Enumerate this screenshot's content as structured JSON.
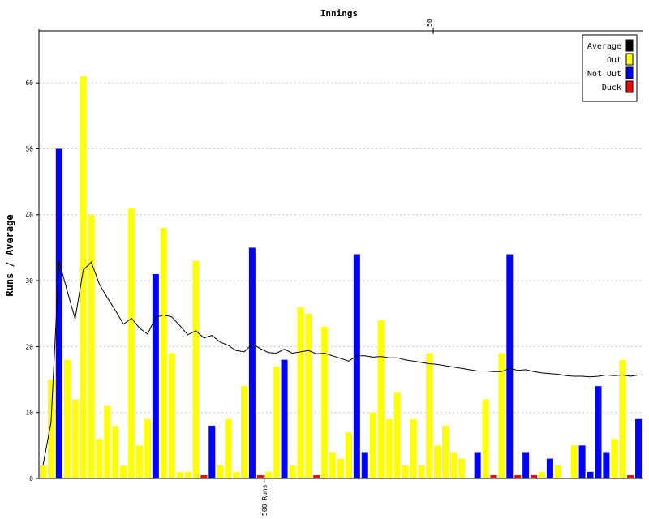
{
  "chart_data": {
    "type": "bar",
    "title": "Innings",
    "ylabel": "Runs / Average",
    "ylim": [
      0,
      68
    ],
    "yticks": [
      0,
      10,
      20,
      30,
      40,
      50,
      60
    ],
    "grid": true,
    "top_axis": {
      "label": "50",
      "innings": 50
    },
    "bottom_axis": {
      "label": "500 Runs",
      "innings": 29
    },
    "legend": {
      "position": "top-right",
      "entries": [
        {
          "name": "Average",
          "color": "#000000"
        },
        {
          "name": "Out",
          "color": "#ffff00"
        },
        {
          "name": "Not Out",
          "color": "#0000ff"
        },
        {
          "name": "Duck",
          "color": "#ff0000"
        }
      ]
    },
    "colors": {
      "Out": "#ffff00",
      "Not Out": "#0000ff",
      "Duck": "#ff0000",
      "Average": "#000000",
      "grid": "#c8c8c8"
    },
    "innings": [
      {
        "runs": 2,
        "status": "Out"
      },
      {
        "runs": 15,
        "status": "Out"
      },
      {
        "runs": 50,
        "status": "Not Out"
      },
      {
        "runs": 18,
        "status": "Out"
      },
      {
        "runs": 12,
        "status": "Out"
      },
      {
        "runs": 61,
        "status": "Out"
      },
      {
        "runs": 40,
        "status": "Out"
      },
      {
        "runs": 6,
        "status": "Out"
      },
      {
        "runs": 11,
        "status": "Out"
      },
      {
        "runs": 8,
        "status": "Out"
      },
      {
        "runs": 2,
        "status": "Out"
      },
      {
        "runs": 41,
        "status": "Out"
      },
      {
        "runs": 5,
        "status": "Out"
      },
      {
        "runs": 9,
        "status": "Out"
      },
      {
        "runs": 31,
        "status": "Not Out"
      },
      {
        "runs": 38,
        "status": "Out"
      },
      {
        "runs": 19,
        "status": "Out"
      },
      {
        "runs": 1,
        "status": "Out"
      },
      {
        "runs": 1,
        "status": "Out"
      },
      {
        "runs": 33,
        "status": "Out"
      },
      {
        "runs": 0,
        "status": "Duck"
      },
      {
        "runs": 8,
        "status": "Not Out"
      },
      {
        "runs": 2,
        "status": "Out"
      },
      {
        "runs": 9,
        "status": "Out"
      },
      {
        "runs": 1,
        "status": "Out"
      },
      {
        "runs": 14,
        "status": "Out"
      },
      {
        "runs": 35,
        "status": "Not Out"
      },
      {
        "runs": 0,
        "status": "Duck"
      },
      {
        "runs": 1,
        "status": "Out"
      },
      {
        "runs": 17,
        "status": "Out"
      },
      {
        "runs": 18,
        "status": "Not Out"
      },
      {
        "runs": 2,
        "status": "Out"
      },
      {
        "runs": 26,
        "status": "Out"
      },
      {
        "runs": 25,
        "status": "Out"
      },
      {
        "runs": 0,
        "status": "Duck"
      },
      {
        "runs": 23,
        "status": "Out"
      },
      {
        "runs": 4,
        "status": "Out"
      },
      {
        "runs": 3,
        "status": "Out"
      },
      {
        "runs": 7,
        "status": "Out"
      },
      {
        "runs": 34,
        "status": "Not Out"
      },
      {
        "runs": 4,
        "status": "Not Out"
      },
      {
        "runs": 10,
        "status": "Out"
      },
      {
        "runs": 24,
        "status": "Out"
      },
      {
        "runs": 9,
        "status": "Out"
      },
      {
        "runs": 13,
        "status": "Out"
      },
      {
        "runs": 2,
        "status": "Out"
      },
      {
        "runs": 9,
        "status": "Out"
      },
      {
        "runs": 2,
        "status": "Out"
      },
      {
        "runs": 19,
        "status": "Out"
      },
      {
        "runs": 5,
        "status": "Out"
      },
      {
        "runs": 8,
        "status": "Out"
      },
      {
        "runs": 4,
        "status": "Out"
      },
      {
        "runs": 3,
        "status": "Out"
      },
      {
        "runs": 0,
        "status": "Out"
      },
      {
        "runs": 4,
        "status": "Not Out"
      },
      {
        "runs": 12,
        "status": "Out"
      },
      {
        "runs": 0,
        "status": "Duck"
      },
      {
        "runs": 19,
        "status": "Out"
      },
      {
        "runs": 34,
        "status": "Not Out"
      },
      {
        "runs": 0,
        "status": "Duck"
      },
      {
        "runs": 4,
        "status": "Not Out"
      },
      {
        "runs": 0,
        "status": "Duck"
      },
      {
        "runs": 1,
        "status": "Out"
      },
      {
        "runs": 3,
        "status": "Not Out"
      },
      {
        "runs": 2,
        "status": "Out"
      },
      {
        "runs": 0,
        "status": "Out"
      },
      {
        "runs": 5,
        "status": "Out"
      },
      {
        "runs": 5,
        "status": "Not Out"
      },
      {
        "runs": 1,
        "status": "Not Out"
      },
      {
        "runs": 14,
        "status": "Not Out"
      },
      {
        "runs": 4,
        "status": "Not Out"
      },
      {
        "runs": 6,
        "status": "Out"
      },
      {
        "runs": 18,
        "status": "Out"
      },
      {
        "runs": 0,
        "status": "Duck"
      },
      {
        "runs": 9,
        "status": "Not Out"
      }
    ],
    "average": [
      2.0,
      8.5,
      33.0,
      28.5,
      24.2,
      31.6,
      32.8,
      29.5,
      27.4,
      25.5,
      23.4,
      24.3,
      22.8,
      21.9,
      24.4,
      24.8,
      24.5,
      23.2,
      21.8,
      22.4,
      21.3,
      21.7,
      20.7,
      20.2,
      19.4,
      19.2,
      20.4,
      19.7,
      19.1,
      19.0,
      19.6,
      19.0,
      19.2,
      19.4,
      18.9,
      19.0,
      18.6,
      18.2,
      17.8,
      18.6,
      18.6,
      18.4,
      18.5,
      18.3,
      18.3,
      18.0,
      17.8,
      17.6,
      17.4,
      17.3,
      17.1,
      16.9,
      16.7,
      16.5,
      16.3,
      16.3,
      16.2,
      16.2,
      16.7,
      16.4,
      16.5,
      16.2,
      16.0,
      15.9,
      15.8,
      15.6,
      15.5,
      15.5,
      15.4,
      15.5,
      15.7,
      15.6,
      15.7,
      15.5,
      15.7
    ]
  }
}
